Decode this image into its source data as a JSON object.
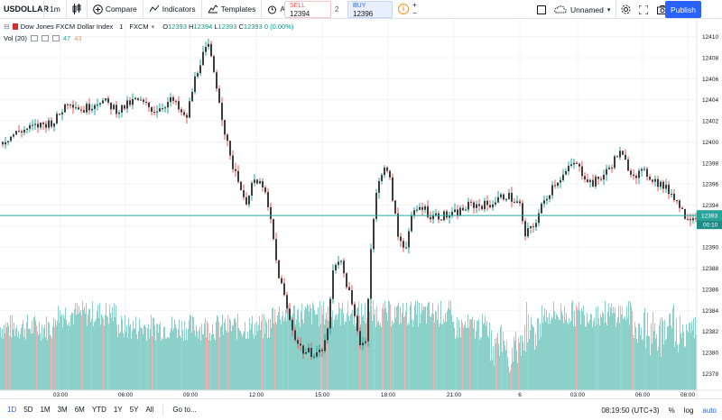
{
  "toolbar": {
    "symbol": "USDOLLAR",
    "interval": "1m",
    "compare": "Compare",
    "indicators": "Indicators",
    "templates": "Templates",
    "alert": "Alert",
    "sell_label": "SELL",
    "sell_price": "12394",
    "spread": "2",
    "buy_label": "BUY",
    "buy_price": "12396",
    "layout_name": "Unnamed",
    "publish": "Publish"
  },
  "legend": {
    "title": "Dow Jones FXCM Dollar Index",
    "interval": "1",
    "exchange": "FXCM",
    "open": "O",
    "open_val": "12393",
    "high": "H",
    "high_val": "12394",
    "low": "L",
    "low_val": "12393",
    "close": "C",
    "close_val": "12393",
    "change": "0 (0.00%)",
    "vol_label": "Vol (20)",
    "vol_a": "47",
    "vol_b": "43"
  },
  "price_axis": {
    "ticks": [
      "12410",
      "12408",
      "12406",
      "12404",
      "12402",
      "12400",
      "12398",
      "12396",
      "12394",
      "12392",
      "12390",
      "12388",
      "12386",
      "12384",
      "12382",
      "12380",
      "12378"
    ],
    "current_price": "12393",
    "countdown": "00:10"
  },
  "time_axis": {
    "ticks": [
      "03:00",
      "06:00",
      "09:00",
      "12:00",
      "15:00",
      "18:00",
      "21:00",
      "6",
      "03:00",
      "06:00",
      "08:00"
    ]
  },
  "bottom": {
    "ranges": [
      "1D",
      "5D",
      "1M",
      "3M",
      "6M",
      "YTD",
      "1Y",
      "5Y",
      "All"
    ],
    "goto": "Go to...",
    "clock": "08:19:50 (UTC+3)",
    "percent": "%",
    "log": "log",
    "auto": "auto"
  },
  "colors": {
    "up": "#26a69a",
    "down": "#ef5350",
    "candle_body": "#3c3c3c",
    "volume": "#80cbc4",
    "volume_down": "#f4a7a5",
    "accent": "#2962ff",
    "price_line": "#26a69a"
  },
  "chart_data": {
    "type": "candlestick",
    "price_range": [
      12377,
      12411
    ],
    "current_price": 12393,
    "close_path": [
      [
        0,
        12400
      ],
      [
        20,
        12401
      ],
      [
        40,
        12401.5
      ],
      [
        60,
        12402
      ],
      [
        75,
        12404
      ],
      [
        90,
        12403
      ],
      [
        110,
        12404
      ],
      [
        130,
        12403
      ],
      [
        150,
        12404
      ],
      [
        170,
        12403
      ],
      [
        190,
        12404
      ],
      [
        205,
        12402
      ],
      [
        215,
        12406
      ],
      [
        222,
        12408
      ],
      [
        230,
        12409
      ],
      [
        240,
        12405
      ],
      [
        248,
        12401
      ],
      [
        255,
        12398
      ],
      [
        262,
        12397
      ],
      [
        270,
        12394
      ],
      [
        278,
        12396
      ],
      [
        290,
        12396
      ],
      [
        300,
        12392
      ],
      [
        306,
        12388
      ],
      [
        312,
        12386
      ],
      [
        320,
        12383
      ],
      [
        328,
        12381
      ],
      [
        336,
        12380
      ],
      [
        345,
        12380
      ],
      [
        355,
        12380
      ],
      [
        362,
        12382
      ],
      [
        368,
        12388
      ],
      [
        374,
        12389
      ],
      [
        382,
        12387
      ],
      [
        390,
        12384
      ],
      [
        398,
        12381
      ],
      [
        404,
        12381
      ],
      [
        410,
        12390
      ],
      [
        416,
        12395
      ],
      [
        424,
        12398
      ],
      [
        432,
        12396
      ],
      [
        440,
        12391
      ],
      [
        448,
        12390
      ],
      [
        456,
        12393
      ],
      [
        466,
        12394
      ],
      [
        476,
        12393
      ],
      [
        486,
        12393
      ],
      [
        500,
        12393
      ],
      [
        520,
        12394
      ],
      [
        540,
        12394
      ],
      [
        560,
        12395
      ],
      [
        575,
        12394
      ],
      [
        580,
        12391
      ],
      [
        590,
        12392
      ],
      [
        600,
        12394
      ],
      [
        612,
        12396
      ],
      [
        625,
        12397
      ],
      [
        635,
        12398
      ],
      [
        645,
        12397
      ],
      [
        655,
        12396
      ],
      [
        670,
        12397
      ],
      [
        685,
        12399
      ],
      [
        700,
        12397
      ],
      [
        715,
        12397
      ],
      [
        730,
        12396
      ],
      [
        745,
        12395
      ],
      [
        758,
        12393
      ],
      [
        770,
        12393
      ]
    ]
  }
}
